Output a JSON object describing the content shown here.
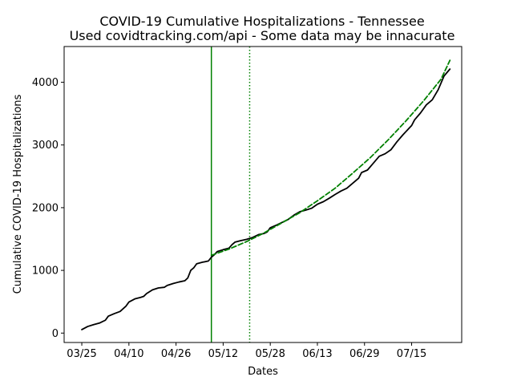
{
  "chart_data": {
    "type": "line",
    "title": "COVID-19 Cumulative Hospitalizations - Tennessee",
    "subtitle": "Used covidtracking.com/api - Some data may be innacurate",
    "xlabel": "Dates",
    "ylabel": "Cumulative COVID-19 Hospitalizations",
    "x_tick_labels": [
      "03/25",
      "04/10",
      "04/26",
      "05/12",
      "05/28",
      "06/13",
      "06/29",
      "07/15"
    ],
    "x_tick_dates": [
      "2020-03-25",
      "2020-04-10",
      "2020-04-26",
      "2020-05-12",
      "2020-05-28",
      "2020-06-13",
      "2020-06-29",
      "2020-07-15"
    ],
    "y_ticks": [
      0,
      1000,
      2000,
      3000,
      4000
    ],
    "xlim": [
      "2020-03-19",
      "2020-08-01"
    ],
    "ylim": [
      -150,
      4570
    ],
    "grid": false,
    "series": [
      {
        "style": "solid",
        "color": "#000000",
        "points": [
          [
            "2020-03-25",
            55
          ],
          [
            "2020-03-27",
            105
          ],
          [
            "2020-03-29",
            135
          ],
          [
            "2020-03-31",
            160
          ],
          [
            "2020-04-02",
            205
          ],
          [
            "2020-04-03",
            270
          ],
          [
            "2020-04-05",
            310
          ],
          [
            "2020-04-07",
            345
          ],
          [
            "2020-04-09",
            430
          ],
          [
            "2020-04-10",
            495
          ],
          [
            "2020-04-12",
            545
          ],
          [
            "2020-04-14",
            570
          ],
          [
            "2020-04-15",
            585
          ],
          [
            "2020-04-16",
            630
          ],
          [
            "2020-04-18",
            690
          ],
          [
            "2020-04-20",
            720
          ],
          [
            "2020-04-22",
            730
          ],
          [
            "2020-04-23",
            760
          ],
          [
            "2020-04-25",
            790
          ],
          [
            "2020-04-27",
            815
          ],
          [
            "2020-04-29",
            835
          ],
          [
            "2020-04-30",
            880
          ],
          [
            "2020-05-01",
            1000
          ],
          [
            "2020-05-02",
            1040
          ],
          [
            "2020-05-03",
            1105
          ],
          [
            "2020-05-05",
            1130
          ],
          [
            "2020-05-07",
            1150
          ],
          [
            "2020-05-08",
            1210
          ],
          [
            "2020-05-09",
            1250
          ],
          [
            "2020-05-10",
            1300
          ],
          [
            "2020-05-12",
            1330
          ],
          [
            "2020-05-14",
            1355
          ],
          [
            "2020-05-15",
            1410
          ],
          [
            "2020-05-16",
            1450
          ],
          [
            "2020-05-18",
            1475
          ],
          [
            "2020-05-20",
            1495
          ],
          [
            "2020-05-22",
            1525
          ],
          [
            "2020-05-24",
            1570
          ],
          [
            "2020-05-26",
            1590
          ],
          [
            "2020-05-27",
            1615
          ],
          [
            "2020-05-28",
            1680
          ],
          [
            "2020-05-30",
            1720
          ],
          [
            "2020-06-01",
            1765
          ],
          [
            "2020-06-03",
            1810
          ],
          [
            "2020-06-05",
            1880
          ],
          [
            "2020-06-07",
            1935
          ],
          [
            "2020-06-09",
            1960
          ],
          [
            "2020-06-11",
            1990
          ],
          [
            "2020-06-13",
            2055
          ],
          [
            "2020-06-15",
            2095
          ],
          [
            "2020-06-17",
            2150
          ],
          [
            "2020-06-19",
            2210
          ],
          [
            "2020-06-21",
            2265
          ],
          [
            "2020-06-23",
            2310
          ],
          [
            "2020-06-25",
            2390
          ],
          [
            "2020-06-27",
            2470
          ],
          [
            "2020-06-28",
            2560
          ],
          [
            "2020-06-30",
            2600
          ],
          [
            "2020-07-02",
            2710
          ],
          [
            "2020-07-04",
            2820
          ],
          [
            "2020-07-06",
            2860
          ],
          [
            "2020-07-08",
            2925
          ],
          [
            "2020-07-10",
            3050
          ],
          [
            "2020-07-12",
            3160
          ],
          [
            "2020-07-14",
            3260
          ],
          [
            "2020-07-15",
            3310
          ],
          [
            "2020-07-16",
            3400
          ],
          [
            "2020-07-18",
            3510
          ],
          [
            "2020-07-20",
            3640
          ],
          [
            "2020-07-22",
            3720
          ],
          [
            "2020-07-24",
            3880
          ],
          [
            "2020-07-26",
            4100
          ],
          [
            "2020-07-28",
            4210
          ]
        ]
      },
      {
        "style": "dashed",
        "color": "#008000",
        "points": [
          [
            "2020-05-08",
            1240
          ],
          [
            "2020-05-14",
            1340
          ],
          [
            "2020-05-20",
            1460
          ],
          [
            "2020-05-26",
            1600
          ],
          [
            "2020-06-01",
            1760
          ],
          [
            "2020-06-07",
            1920
          ],
          [
            "2020-06-13",
            2110
          ],
          [
            "2020-06-19",
            2310
          ],
          [
            "2020-06-25",
            2550
          ],
          [
            "2020-07-01",
            2800
          ],
          [
            "2020-07-07",
            3080
          ],
          [
            "2020-07-13",
            3380
          ],
          [
            "2020-07-19",
            3700
          ],
          [
            "2020-07-25",
            4050
          ],
          [
            "2020-07-28",
            4350
          ]
        ]
      }
    ],
    "vertical_lines": [
      {
        "date": "2020-05-08",
        "style": "solid",
        "color": "#008000"
      },
      {
        "date": "2020-05-21",
        "style": "dotted",
        "color": "#008000"
      }
    ]
  }
}
